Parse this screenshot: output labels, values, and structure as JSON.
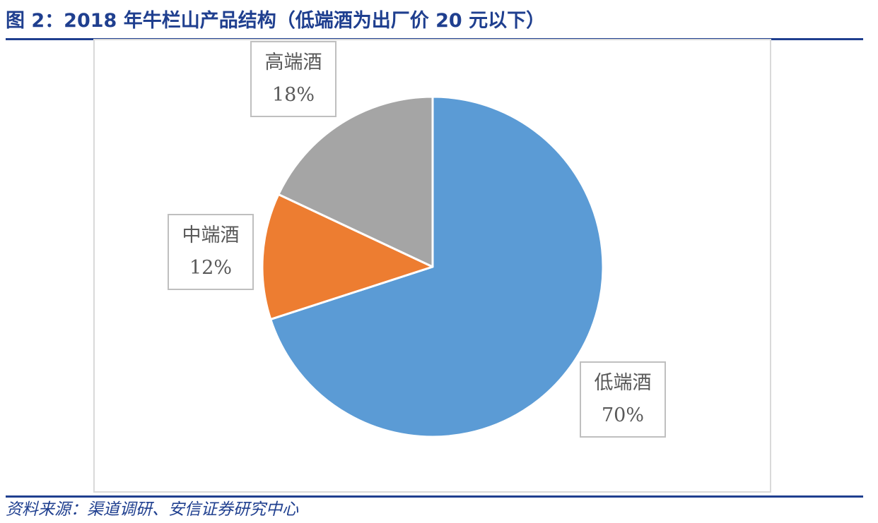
{
  "figure": {
    "title": "图 2：2018 年牛栏山产品结构（低端酒为出厂价 20 元以下）",
    "source": "资料来源：渠道调研、安信证券研究中心"
  },
  "chart_data": {
    "type": "pie",
    "title": "",
    "slices": [
      {
        "label": "低端酒",
        "value": 70,
        "display": "70%",
        "color": "#5b9bd5"
      },
      {
        "label": "中端酒",
        "value": 12,
        "display": "12%",
        "color": "#ed7d31"
      },
      {
        "label": "高端酒",
        "value": 18,
        "display": "18%",
        "color": "#a5a5a5"
      }
    ],
    "start_angle": "12 o'clock",
    "direction": "clockwise",
    "legend": "none",
    "data_labels": "category name and percentage in boxed callouts"
  }
}
